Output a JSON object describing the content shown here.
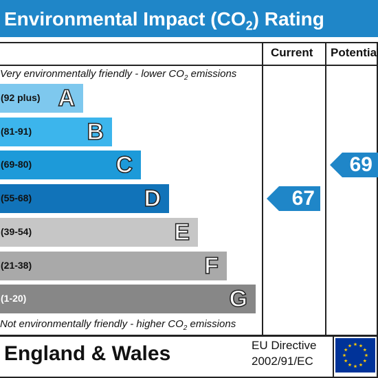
{
  "header": {
    "title_main": "Environmental Impact (CO",
    "title_sub": "2",
    "title_end": ") Rating"
  },
  "columns": {
    "current": "Current",
    "potential": "Potential"
  },
  "captions": {
    "top_pre": "Very environmentally friendly - lower CO",
    "top_sub": "2",
    "top_post": " emissions",
    "bottom_pre": "Not environmentally friendly - higher CO",
    "bottom_sub": "2",
    "bottom_post": " emissions"
  },
  "footer": {
    "region": "England & Wales",
    "directive_line1": "EU Directive",
    "directive_line2": "2002/91/EC"
  },
  "colors": {
    "title_bar": "#1f86c8",
    "arrow": "#1f86c8",
    "eu_flag": "#003399",
    "eu_stars": "#ffcc00"
  },
  "icons": {
    "eu_flag": "eu-flag-icon"
  },
  "chart_data": {
    "type": "bar",
    "bands": [
      {
        "letter": "A",
        "range": "(92 plus)",
        "color": "#7ec8ee",
        "range_color": "#111111"
      },
      {
        "letter": "B",
        "range": "(81-91)",
        "color": "#3cb5ec",
        "range_color": "#111111"
      },
      {
        "letter": "C",
        "range": "(69-80)",
        "color": "#1d9ad9",
        "range_color": "#111111"
      },
      {
        "letter": "D",
        "range": "(55-68)",
        "color": "#1173b9",
        "range_color": "#111111"
      },
      {
        "letter": "E",
        "range": "(39-54)",
        "color": "#c6c6c6",
        "range_color": "#111111"
      },
      {
        "letter": "F",
        "range": "(21-38)",
        "color": "#a9a9a9",
        "range_color": "#111111"
      },
      {
        "letter": "G",
        "range": "(1-20)",
        "color": "#878787",
        "range_color": "#ffffff"
      }
    ],
    "current": {
      "value": 67,
      "band": "D"
    },
    "potential": {
      "value": 69,
      "band": "C"
    }
  }
}
